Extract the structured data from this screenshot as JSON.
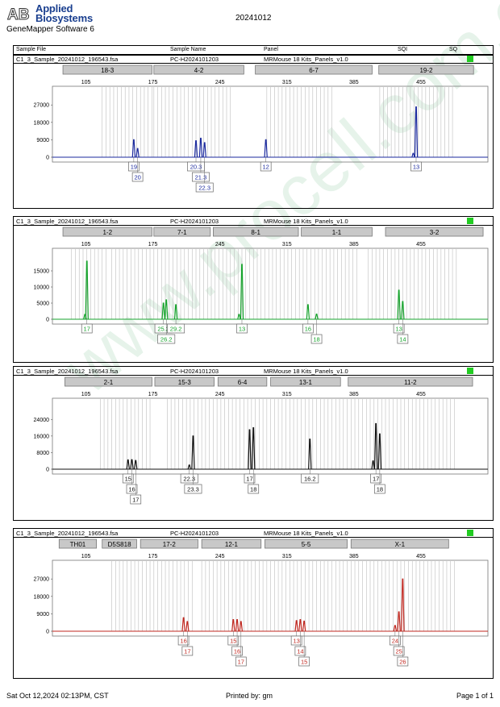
{
  "header": {
    "brand_line1": "Applied",
    "brand_line2": "Biosystems",
    "logo_letters": "AB",
    "software": "GeneMapper Software 6",
    "date": "20241012"
  },
  "columns": {
    "sample_file": "Sample File",
    "sample_name": "Sample Name",
    "panel": "Panel",
    "sqi": "SQI",
    "sq": "SQ"
  },
  "watermark": "www.procell.com.cn",
  "footer": {
    "timestamp": "Sat Oct 12,2024 02:13PM, CST",
    "printed_by": "Printed by: gm",
    "page": "Page 1 of 1"
  },
  "colors": {
    "blue": "#1b2a9e",
    "green": "#16a32c",
    "black": "#111111",
    "red": "#c0271f",
    "sq_ok": "#22cc22"
  },
  "chart_data": [
    {
      "type": "line",
      "sample_file": "C1_3_Sample_20241012_196543.fsa",
      "sample_name": "PC-H2024101203",
      "panel": "MRMouse 18 Kits_Panels_v1.0",
      "color": "#1b2a9e",
      "x_ticks": [
        105,
        175,
        245,
        315,
        385,
        455
      ],
      "xlim": [
        70,
        525
      ],
      "y_ticks": [
        0,
        9000,
        18000,
        27000
      ],
      "ylim": [
        0,
        30000
      ],
      "markers": [
        {
          "name": "18-3",
          "start": 81,
          "end": 174
        },
        {
          "name": "4-2",
          "start": 176,
          "end": 270
        },
        {
          "name": "6-7",
          "start": 282,
          "end": 404
        },
        {
          "name": "19-2",
          "start": 411,
          "end": 510
        }
      ],
      "bins": [
        122,
        126,
        130,
        134,
        138,
        142,
        146,
        150,
        154,
        158,
        162,
        166,
        170,
        174,
        176,
        180,
        184,
        188,
        192,
        196,
        200,
        204,
        208,
        212,
        216,
        220,
        224,
        228,
        232,
        236,
        240,
        244,
        248,
        252,
        256,
        294,
        298,
        302,
        306,
        310,
        314,
        318,
        322,
        326,
        330,
        334,
        338,
        342,
        346,
        350,
        354,
        358,
        362,
        412,
        416,
        420,
        424,
        428,
        432,
        436,
        440,
        444,
        448,
        452,
        456,
        460,
        464,
        468,
        472,
        476,
        480,
        484,
        488
      ],
      "peaks": [
        {
          "x": 155,
          "y": 9000
        },
        {
          "x": 159,
          "y": 4500
        },
        {
          "x": 220,
          "y": 8500
        },
        {
          "x": 225,
          "y": 9800
        },
        {
          "x": 229,
          "y": 7500
        },
        {
          "x": 293,
          "y": 9000
        },
        {
          "x": 447,
          "y": 2000
        },
        {
          "x": 450,
          "y": 26000
        }
      ],
      "alleles": [
        {
          "label": "19",
          "x": 155,
          "row": 0
        },
        {
          "label": "20",
          "x": 159,
          "row": 1
        },
        {
          "label": "20.3",
          "x": 220,
          "row": 0
        },
        {
          "label": "21.3",
          "x": 225,
          "row": 1
        },
        {
          "label": "22.3",
          "x": 229,
          "row": 2
        },
        {
          "label": "12",
          "x": 293,
          "row": 0
        },
        {
          "label": "13",
          "x": 450,
          "row": 0
        }
      ]
    },
    {
      "type": "line",
      "sample_file": "C1_3_Sample_20241012_196543.fsa",
      "sample_name": "PC-H2024101203",
      "panel": "MRMouse 18 Kits_Panels_v1.0",
      "color": "#16a32c",
      "x_ticks": [
        105,
        175,
        245,
        315,
        385,
        455
      ],
      "xlim": [
        70,
        525
      ],
      "y_ticks": [
        0,
        5000,
        10000,
        15000
      ],
      "ylim": [
        0,
        18000
      ],
      "markers": [
        {
          "name": "1-2",
          "start": 81,
          "end": 174
        },
        {
          "name": "7-1",
          "start": 176,
          "end": 235
        },
        {
          "name": "8-1",
          "start": 238,
          "end": 327
        },
        {
          "name": "1-1",
          "start": 330,
          "end": 404
        },
        {
          "name": "3-2",
          "start": 418,
          "end": 520
        }
      ],
      "bins": [
        90,
        94,
        98,
        102,
        106,
        110,
        114,
        118,
        122,
        126,
        132,
        136,
        140,
        144,
        148,
        152,
        156,
        160,
        164,
        168,
        172,
        176,
        180,
        184,
        188,
        192,
        196,
        200,
        204,
        208,
        212,
        216,
        220,
        224,
        228,
        232,
        236,
        240,
        244,
        248,
        252,
        256,
        260,
        264,
        268,
        272,
        276,
        280,
        284,
        288,
        292,
        296,
        300,
        304,
        308,
        312,
        316,
        320,
        324,
        328,
        332,
        336,
        340,
        344,
        348,
        352,
        356,
        360,
        364,
        368,
        372,
        376,
        380,
        384,
        388,
        400,
        404,
        408,
        412,
        416,
        420,
        424,
        428,
        432,
        436,
        440,
        444,
        448,
        452,
        456,
        460,
        464,
        468,
        472,
        476,
        480,
        484,
        488,
        492
      ],
      "peaks": [
        {
          "x": 104,
          "y": 1500
        },
        {
          "x": 106,
          "y": 18000
        },
        {
          "x": 186,
          "y": 5000
        },
        {
          "x": 189,
          "y": 6000
        },
        {
          "x": 199,
          "y": 4500
        },
        {
          "x": 265,
          "y": 1500
        },
        {
          "x": 268,
          "y": 17000
        },
        {
          "x": 337,
          "y": 4500
        },
        {
          "x": 346,
          "y": 1600
        },
        {
          "x": 432,
          "y": 9000
        },
        {
          "x": 436,
          "y": 5500
        }
      ],
      "alleles": [
        {
          "label": "17",
          "x": 106,
          "row": 0
        },
        {
          "label": "25.2",
          "x": 186,
          "row": 0
        },
        {
          "label": "26.2",
          "x": 189,
          "row": 1
        },
        {
          "label": "29.2",
          "x": 199,
          "row": 0
        },
        {
          "label": "13",
          "x": 268,
          "row": 0
        },
        {
          "label": "16",
          "x": 337,
          "row": 0
        },
        {
          "label": "18",
          "x": 346,
          "row": 1
        },
        {
          "label": "13",
          "x": 432,
          "row": 0
        },
        {
          "label": "14",
          "x": 436,
          "row": 1
        }
      ]
    },
    {
      "type": "line",
      "sample_file": "C1_3_Sample_20241012_196543.fsa",
      "sample_name": "PC-H2024101203",
      "panel": "MRMouse 18 Kits_Panels_v1.0",
      "color": "#111111",
      "x_ticks": [
        105,
        175,
        245,
        315,
        385,
        455
      ],
      "xlim": [
        70,
        525
      ],
      "y_ticks": [
        0,
        8000,
        16000,
        24000
      ],
      "ylim": [
        0,
        28000
      ],
      "markers": [
        {
          "name": "2-1",
          "start": 83,
          "end": 174
        },
        {
          "name": "15-3",
          "start": 177,
          "end": 239
        },
        {
          "name": "6-4",
          "start": 243,
          "end": 294
        },
        {
          "name": "13-1",
          "start": 298,
          "end": 371
        },
        {
          "name": "11-2",
          "start": 379,
          "end": 509
        }
      ],
      "bins": [
        120,
        124,
        128,
        132,
        136,
        140,
        144,
        148,
        152,
        156,
        160,
        164,
        168,
        172,
        190,
        194,
        198,
        202,
        206,
        210,
        214,
        218,
        222,
        226,
        230,
        234,
        238,
        242,
        246,
        250,
        254,
        258,
        262,
        266,
        270,
        274,
        278,
        282,
        286,
        290,
        294,
        298,
        302,
        306,
        310,
        314,
        318,
        322,
        326,
        330,
        334,
        338,
        342,
        346,
        350,
        354,
        358,
        362,
        366,
        370,
        374,
        378,
        382,
        386,
        390,
        394,
        398,
        402,
        406,
        410,
        414,
        418,
        422,
        426,
        430,
        434,
        438,
        442,
        446,
        450,
        454,
        458,
        462,
        466,
        470,
        474,
        478,
        482,
        486,
        490
      ],
      "peaks": [
        {
          "x": 149,
          "y": 4500
        },
        {
          "x": 153,
          "y": 4600
        },
        {
          "x": 157,
          "y": 4200
        },
        {
          "x": 213,
          "y": 2000
        },
        {
          "x": 217,
          "y": 16000
        },
        {
          "x": 276,
          "y": 19000
        },
        {
          "x": 280,
          "y": 20000
        },
        {
          "x": 339,
          "y": 14500
        },
        {
          "x": 405,
          "y": 4000
        },
        {
          "x": 408,
          "y": 22000
        },
        {
          "x": 412,
          "y": 17000
        }
      ],
      "alleles": [
        {
          "label": "15",
          "x": 149,
          "row": 0
        },
        {
          "label": "16",
          "x": 153,
          "row": 1
        },
        {
          "label": "17",
          "x": 157,
          "row": 2
        },
        {
          "label": "22.3",
          "x": 213,
          "row": 0
        },
        {
          "label": "23.3",
          "x": 217,
          "row": 1
        },
        {
          "label": "17",
          "x": 276,
          "row": 0
        },
        {
          "label": "18",
          "x": 280,
          "row": 1
        },
        {
          "label": "16.2",
          "x": 339,
          "row": 0
        },
        {
          "label": "17",
          "x": 408,
          "row": 0
        },
        {
          "label": "18",
          "x": 412,
          "row": 1
        }
      ]
    },
    {
      "type": "line",
      "sample_file": "C1_3_Sample_20241012_196543.fsa",
      "sample_name": "PC-H2024101203",
      "panel": "MRMouse 18 Kits_Panels_v1.0",
      "color": "#c0271f",
      "x_ticks": [
        105,
        175,
        245,
        315,
        385,
        455
      ],
      "xlim": [
        70,
        525
      ],
      "y_ticks": [
        0,
        9000,
        18000,
        27000
      ],
      "ylim": [
        0,
        30000
      ],
      "markers": [
        {
          "name": "TH01",
          "start": 77,
          "end": 116
        },
        {
          "name": "D5S818",
          "start": 122,
          "end": 158
        },
        {
          "name": "17-2",
          "start": 162,
          "end": 222
        },
        {
          "name": "12-1",
          "start": 226,
          "end": 288
        },
        {
          "name": "5-5",
          "start": 292,
          "end": 378
        },
        {
          "name": "X-1",
          "start": 382,
          "end": 484
        }
      ],
      "bins": [
        132,
        136,
        140,
        144,
        148,
        152,
        156,
        160,
        164,
        168,
        172,
        176,
        180,
        184,
        188,
        192,
        196,
        200,
        204,
        208,
        212,
        216,
        226,
        230,
        234,
        238,
        242,
        246,
        250,
        254,
        258,
        262,
        266,
        270,
        274,
        278,
        282,
        286,
        290,
        294,
        298,
        302,
        306,
        310,
        314,
        318,
        322,
        326,
        330,
        334,
        338,
        342,
        346,
        350,
        354,
        358,
        362,
        366,
        370,
        374,
        378,
        382,
        386,
        390,
        394,
        398,
        402,
        406,
        410,
        414,
        418,
        422,
        426,
        430,
        434,
        438,
        442,
        446,
        450,
        454,
        458,
        462,
        466,
        470,
        474,
        478,
        482,
        486,
        490
      ],
      "peaks": [
        {
          "x": 207,
          "y": 7000
        },
        {
          "x": 211,
          "y": 5000
        },
        {
          "x": 259,
          "y": 6000
        },
        {
          "x": 263,
          "y": 6000
        },
        {
          "x": 267,
          "y": 5000
        },
        {
          "x": 325,
          "y": 5500
        },
        {
          "x": 329,
          "y": 6000
        },
        {
          "x": 333,
          "y": 5200
        },
        {
          "x": 428,
          "y": 3000
        },
        {
          "x": 432,
          "y": 10000
        },
        {
          "x": 436,
          "y": 27000
        }
      ],
      "alleles": [
        {
          "label": "16",
          "x": 207,
          "row": 0
        },
        {
          "label": "17",
          "x": 211,
          "row": 1
        },
        {
          "label": "15",
          "x": 259,
          "row": 0
        },
        {
          "label": "16",
          "x": 263,
          "row": 1
        },
        {
          "label": "17",
          "x": 267,
          "row": 2
        },
        {
          "label": "13",
          "x": 325,
          "row": 0
        },
        {
          "label": "14",
          "x": 329,
          "row": 1
        },
        {
          "label": "15",
          "x": 333,
          "row": 2
        },
        {
          "label": "24",
          "x": 428,
          "row": 0
        },
        {
          "label": "25",
          "x": 432,
          "row": 1
        },
        {
          "label": "26",
          "x": 436,
          "row": 2
        }
      ]
    }
  ]
}
